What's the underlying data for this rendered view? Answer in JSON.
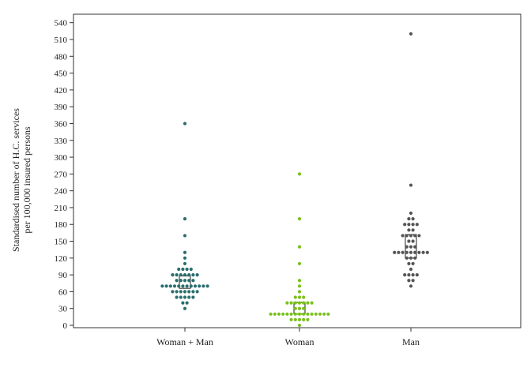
{
  "chart_data": {
    "type": "scatter",
    "title": "",
    "ylabel_lines": [
      "Standardised number of H.C. services",
      "per 100,000 insured persons"
    ],
    "ylim": [
      0,
      550
    ],
    "yticks": [
      0,
      30,
      60,
      90,
      120,
      150,
      180,
      210,
      240,
      270,
      300,
      330,
      360,
      390,
      420,
      450,
      480,
      510,
      540
    ],
    "categories": [
      "Woman + Man",
      "Woman",
      "Man"
    ],
    "grid": false,
    "legend": "none",
    "series": [
      {
        "category": "Woman + Man",
        "color": "#2a6e6e",
        "box": [
          66,
          88
        ],
        "values": [
          30,
          40,
          40,
          50,
          50,
          50,
          50,
          50,
          60,
          60,
          60,
          60,
          60,
          60,
          60,
          70,
          70,
          70,
          70,
          70,
          70,
          70,
          70,
          70,
          70,
          70,
          70,
          80,
          80,
          80,
          80,
          80,
          90,
          90,
          90,
          90,
          90,
          90,
          90,
          100,
          100,
          100,
          100,
          110,
          120,
          130,
          160,
          190,
          360
        ]
      },
      {
        "category": "Woman",
        "color": "#7ac11e",
        "box": [
          20,
          41
        ],
        "values": [
          0,
          10,
          10,
          10,
          10,
          10,
          20,
          20,
          20,
          20,
          20,
          20,
          20,
          20,
          20,
          20,
          20,
          20,
          20,
          20,
          20,
          30,
          30,
          30,
          40,
          40,
          40,
          40,
          40,
          40,
          40,
          50,
          50,
          50,
          60,
          70,
          80,
          110,
          140,
          190,
          270
        ]
      },
      {
        "category": "Man",
        "color": "#555555",
        "box": [
          120,
          162
        ],
        "values": [
          70,
          80,
          80,
          90,
          90,
          90,
          90,
          100,
          110,
          110,
          120,
          120,
          120,
          130,
          130,
          130,
          130,
          130,
          130,
          130,
          130,
          130,
          140,
          140,
          140,
          150,
          150,
          160,
          160,
          160,
          160,
          160,
          170,
          170,
          180,
          180,
          180,
          180,
          190,
          190,
          200,
          250,
          520
        ]
      }
    ]
  }
}
